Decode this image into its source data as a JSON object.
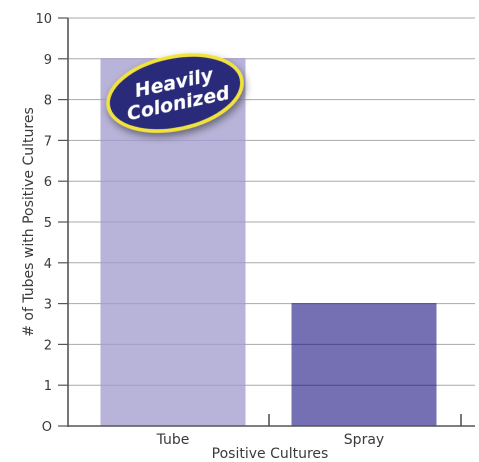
{
  "chart_data": {
    "type": "bar",
    "categories": [
      "Tube",
      "Spray"
    ],
    "values": [
      9,
      3
    ],
    "title": "",
    "xlabel": "Positive Cultures",
    "ylabel": "# of Tubes with Positive Cultures",
    "ylim": [
      0,
      10
    ],
    "yticks": [
      "O",
      "1",
      "2",
      "3",
      "4",
      "5",
      "6",
      "7",
      "8",
      "9",
      "10"
    ],
    "grid": true,
    "legend": "none",
    "bar_colors": [
      "#b8b3d8",
      "#7570b4"
    ],
    "annotation": {
      "lines": [
        "Heavily",
        "Colonized"
      ],
      "fill_color": "#2b2b7a",
      "border_color": "#f2e33a",
      "category": "Tube"
    }
  }
}
